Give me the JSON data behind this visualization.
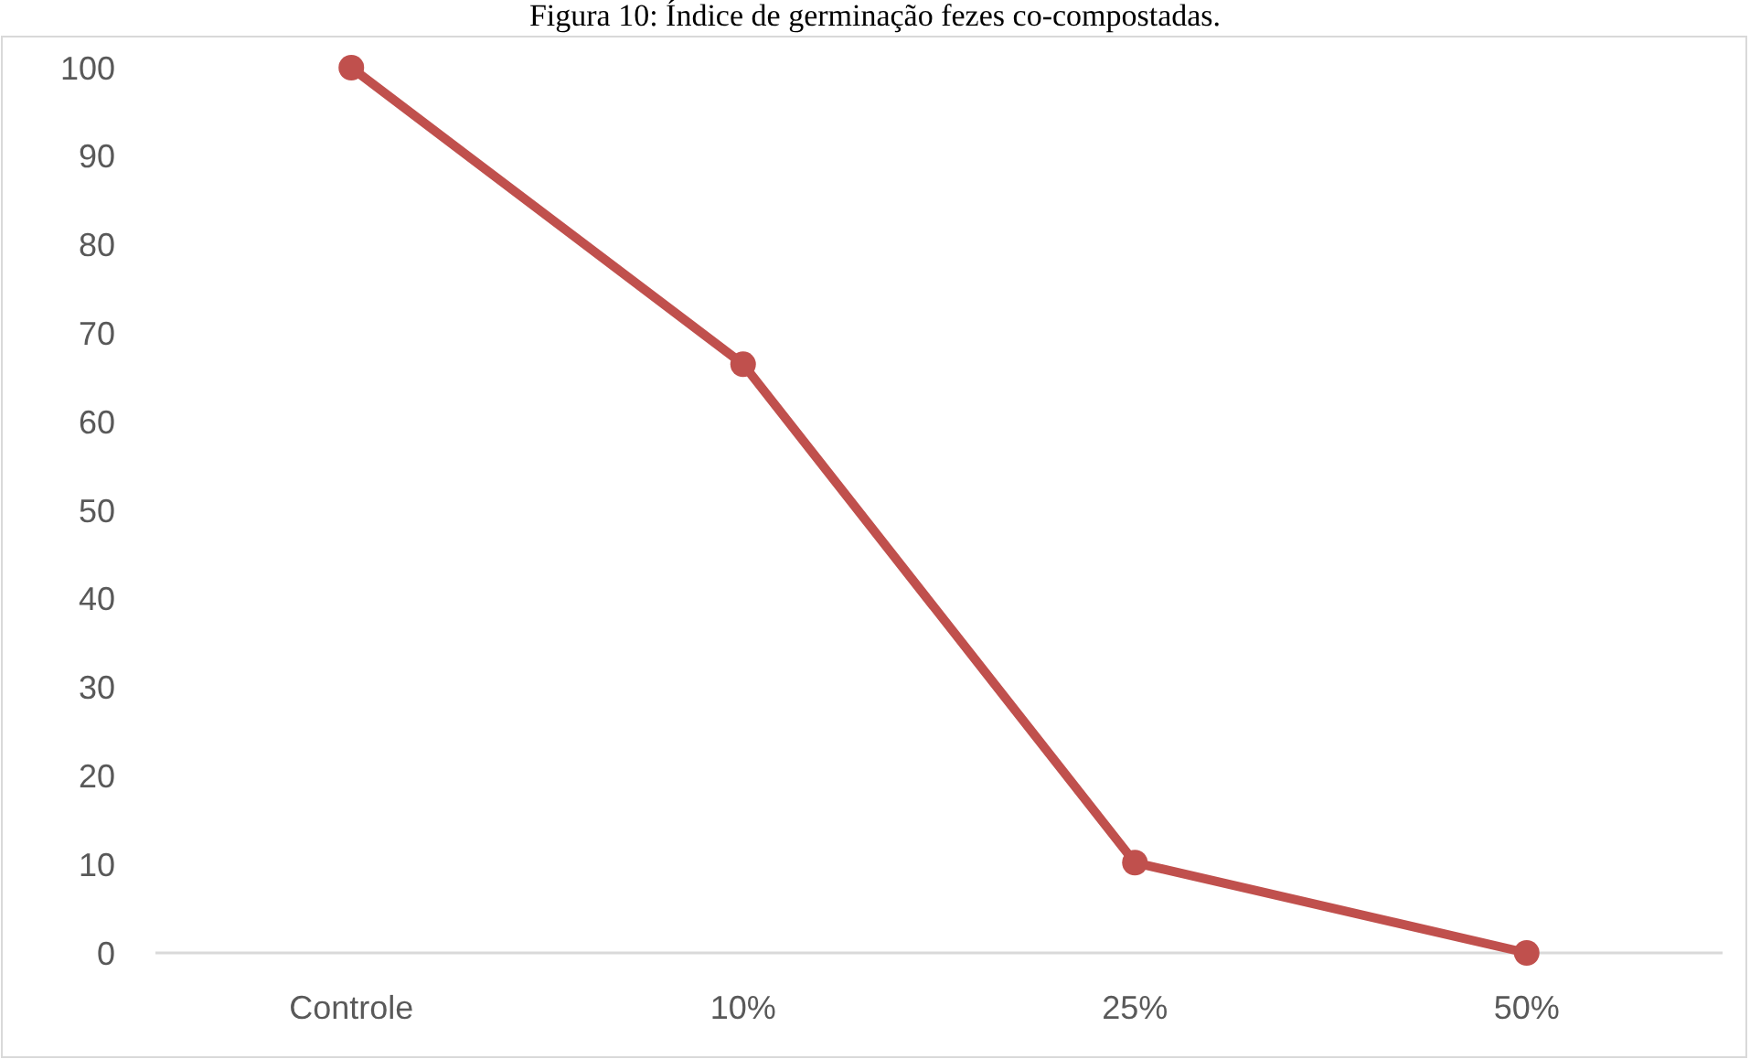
{
  "chart_data": {
    "type": "line",
    "title": "Figura 10: Índice de germinação fezes co-compostadas.",
    "categories": [
      "Controle",
      "10%",
      "25%",
      "50%"
    ],
    "series": [
      {
        "color": "#c0504d",
        "values": [
          100,
          66.5,
          10.2,
          0
        ]
      }
    ],
    "ylim": [
      0,
      100
    ],
    "yticks": [
      0,
      10,
      20,
      30,
      40,
      50,
      60,
      70,
      80,
      90,
      100
    ],
    "grid": false,
    "marker": "circle",
    "line_style": "solid"
  }
}
